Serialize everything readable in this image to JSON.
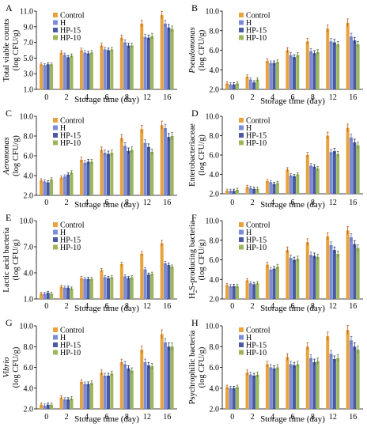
{
  "figure": {
    "legend_names": [
      "Control",
      "H",
      "HP-15",
      "HP-10"
    ],
    "colors": [
      "#E8A33C",
      "#7B8CD8",
      "#4A5AA0",
      "#9DB65A"
    ]
  },
  "chart_data": [
    {
      "type": "bar",
      "panel_letter": "A",
      "categories": [
        "0",
        "2",
        "4",
        "6",
        "8",
        "12",
        "16"
      ],
      "xlabel": "Storage time (day)",
      "ylabel": "Total viable counts (log CFU/g)",
      "ylim": [
        1,
        11
      ],
      "yticks": [
        "1.0",
        "3.0",
        "5.0",
        "7.0",
        "9.0",
        "11.0"
      ],
      "legend_position": "top-left",
      "series": [
        {
          "name": "Control",
          "values": [
            4.2,
            5.7,
            6.0,
            6.6,
            7.6,
            9.4,
            10.5
          ]
        },
        {
          "name": "H",
          "values": [
            4.1,
            5.4,
            5.7,
            6.1,
            7.0,
            7.7,
            9.4
          ]
        },
        {
          "name": "HP-15",
          "values": [
            4.2,
            5.1,
            5.6,
            6.0,
            6.6,
            7.6,
            8.9
          ]
        },
        {
          "name": "HP-10",
          "values": [
            4.2,
            5.3,
            5.7,
            6.1,
            6.6,
            7.8,
            8.7
          ]
        }
      ]
    },
    {
      "type": "bar",
      "panel_letter": "B",
      "categories": [
        "0",
        "2",
        "4",
        "6",
        "8",
        "12",
        "16"
      ],
      "xlabel": "Storage time (day)",
      "ylabel": "Pseudomonas (log CFU/g)",
      "ylim": [
        2,
        10
      ],
      "yticks": [
        "2.0",
        "4.0",
        "6.0",
        "8.0",
        "10.0"
      ],
      "legend_position": "top-left",
      "series": [
        {
          "name": "Control",
          "values": [
            2.6,
            3.3,
            4.9,
            6.0,
            6.9,
            8.2,
            8.8
          ]
        },
        {
          "name": "H",
          "values": [
            2.5,
            3.0,
            4.7,
            5.5,
            5.9,
            6.9,
            7.4
          ]
        },
        {
          "name": "HP-15",
          "values": [
            2.5,
            2.7,
            4.7,
            5.3,
            5.7,
            6.8,
            7.0
          ]
        },
        {
          "name": "HP-10",
          "values": [
            2.6,
            3.0,
            4.8,
            5.5,
            5.8,
            6.6,
            6.6
          ]
        }
      ]
    },
    {
      "type": "bar",
      "panel_letter": "C",
      "categories": [
        "0",
        "2",
        "4",
        "6",
        "8",
        "12",
        "16"
      ],
      "xlabel": "Storage time (day)",
      "ylabel": "Aeromonas (log CFU/g)",
      "ylim": [
        2,
        10
      ],
      "yticks": [
        "2.0",
        "4.0",
        "6.0",
        "8.0",
        "10.0"
      ],
      "legend_position": "top-left",
      "series": [
        {
          "name": "Control",
          "values": [
            3.5,
            3.8,
            5.6,
            6.6,
            7.8,
            8.7,
            9.1
          ]
        },
        {
          "name": "H",
          "values": [
            3.4,
            3.9,
            5.3,
            6.3,
            7.0,
            7.3,
            8.8
          ]
        },
        {
          "name": "HP-15",
          "values": [
            3.3,
            4.1,
            5.4,
            6.2,
            6.5,
            6.9,
            7.9
          ]
        },
        {
          "name": "HP-10",
          "values": [
            3.6,
            4.3,
            5.4,
            6.3,
            6.6,
            6.4,
            8.0
          ]
        }
      ]
    },
    {
      "type": "bar",
      "panel_letter": "D",
      "categories": [
        "0",
        "2",
        "4",
        "6",
        "8",
        "12",
        "16"
      ],
      "xlabel": "Storage time (day)",
      "ylabel": "Enterobacteriaceae (log CFU/g)",
      "ylim": [
        2,
        10
      ],
      "yticks": [
        "2.0",
        "4.0",
        "6.0",
        "8.0",
        "10.0"
      ],
      "legend_position": "top-left",
      "series": [
        {
          "name": "Control",
          "values": [
            2.3,
            2.7,
            3.3,
            4.5,
            6.0,
            8.0,
            8.8
          ]
        },
        {
          "name": "H",
          "values": [
            2.3,
            2.6,
            3.2,
            3.9,
            4.9,
            6.3,
            7.8
          ]
        },
        {
          "name": "HP-15",
          "values": [
            2.3,
            2.5,
            3.0,
            3.8,
            4.8,
            6.4,
            7.3
          ]
        },
        {
          "name": "HP-10",
          "values": [
            2.4,
            2.5,
            3.1,
            4.0,
            4.6,
            6.1,
            7.0
          ]
        }
      ]
    },
    {
      "type": "bar",
      "panel_letter": "E",
      "categories": [
        "0",
        "2",
        "4",
        "6",
        "8",
        "12",
        "16"
      ],
      "xlabel": "Storage time (day)",
      "ylabel": "Lactic acid bacteria (log CFU/g)",
      "ylim": [
        1,
        10
      ],
      "yticks": [
        "1.0",
        "4.0",
        "7.0",
        "10.0"
      ],
      "legend_position": "top-left",
      "series": [
        {
          "name": "Control",
          "values": [
            1.6,
            2.4,
            3.4,
            4.3,
            5.0,
            6.2,
            7.4
          ]
        },
        {
          "name": "H",
          "values": [
            1.6,
            2.3,
            3.3,
            3.5,
            3.6,
            4.4,
            5.1
          ]
        },
        {
          "name": "HP-15",
          "values": [
            1.7,
            2.3,
            3.3,
            3.4,
            3.4,
            3.8,
            4.9
          ]
        },
        {
          "name": "HP-10",
          "values": [
            1.6,
            2.2,
            3.3,
            3.5,
            3.5,
            3.9,
            4.7
          ]
        }
      ]
    },
    {
      "type": "bar",
      "panel_letter": "F",
      "categories": [
        "0",
        "2",
        "4",
        "6",
        "8",
        "12",
        "16"
      ],
      "xlabel": "Storage time (day)",
      "ylabel": "H2S-producing bacteria (log CFU/g)",
      "ylim": [
        2,
        10
      ],
      "yticks": [
        "2.0",
        "4.0",
        "6.0",
        "8.0",
        "10.0"
      ],
      "legend_position": "top-left",
      "series": [
        {
          "name": "Control",
          "values": [
            3.4,
            3.9,
            5.5,
            7.0,
            7.8,
            8.4,
            9.0
          ]
        },
        {
          "name": "H",
          "values": [
            3.3,
            3.6,
            5.0,
            6.2,
            6.5,
            7.5,
            8.3
          ]
        },
        {
          "name": "HP-15",
          "values": [
            3.3,
            3.5,
            5.1,
            6.0,
            6.4,
            7.0,
            7.6
          ]
        },
        {
          "name": "HP-10",
          "values": [
            3.3,
            3.6,
            5.3,
            6.1,
            6.3,
            6.6,
            7.2
          ]
        }
      ]
    },
    {
      "type": "bar",
      "panel_letter": "G",
      "categories": [
        "0",
        "2",
        "4",
        "6",
        "8",
        "12",
        "16"
      ],
      "xlabel": "Storage time (day)",
      "ylabel": "Vibrio (log CFU/g)",
      "ylim": [
        2,
        10
      ],
      "yticks": [
        "2.0",
        "4.0",
        "6.0",
        "8.0",
        "10.0"
      ],
      "legend_position": "top-left",
      "series": [
        {
          "name": "Control",
          "values": [
            2.4,
            3.1,
            4.6,
            5.5,
            6.5,
            7.7,
            9.2
          ]
        },
        {
          "name": "H",
          "values": [
            2.3,
            2.9,
            4.4,
            5.2,
            6.3,
            6.5,
            8.4
          ]
        },
        {
          "name": "HP-15",
          "values": [
            2.4,
            2.9,
            4.4,
            5.2,
            5.9,
            6.2,
            8.0
          ]
        },
        {
          "name": "HP-10",
          "values": [
            2.4,
            3.0,
            4.5,
            5.4,
            5.7,
            6.1,
            8.0
          ]
        }
      ]
    },
    {
      "type": "bar",
      "panel_letter": "H",
      "categories": [
        "0",
        "2",
        "4",
        "6",
        "8",
        "12",
        "16"
      ],
      "xlabel": "Storage time (day)",
      "ylabel": "Psychrophilic bacteria (log CFU/g)",
      "ylim": [
        2,
        10
      ],
      "yticks": [
        "2.0",
        "4.0",
        "6.0",
        "8.0",
        "10.0"
      ],
      "legend_position": "top-left",
      "series": [
        {
          "name": "Control",
          "values": [
            4.1,
            5.5,
            6.3,
            7.0,
            8.0,
            9.0,
            9.6
          ]
        },
        {
          "name": "H",
          "values": [
            4.0,
            5.3,
            6.0,
            6.3,
            6.9,
            7.3,
            8.6
          ]
        },
        {
          "name": "HP-15",
          "values": [
            4.0,
            5.2,
            5.9,
            6.2,
            6.5,
            6.8,
            8.0
          ]
        },
        {
          "name": "HP-10",
          "values": [
            4.1,
            5.3,
            6.0,
            6.3,
            6.6,
            6.9,
            7.7
          ]
        }
      ]
    }
  ]
}
